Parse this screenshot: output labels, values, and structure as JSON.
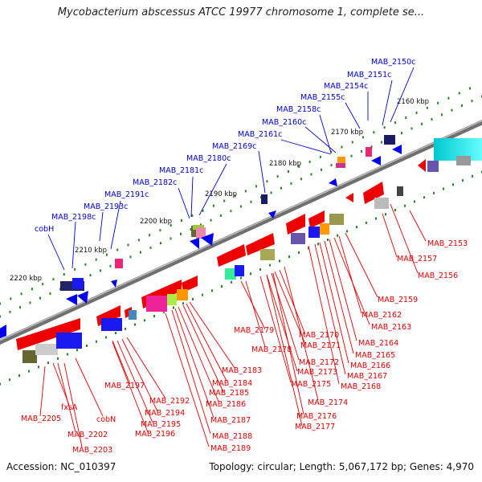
{
  "title": "Mycobacterium abscessus ATCC 19977 chromosome 1, complete se...",
  "footer": {
    "accession": "Accession: NC_010397",
    "summary": "Topology: circular; Length: 5,067,172 bp; Genes: 4,970"
  },
  "colors": {
    "forward_label": "#0000cc",
    "reverse_label": "#dd0000",
    "backbone": "#808080",
    "tick": "#228822",
    "forward_gene": "#0000ee",
    "reverse_gene": "#ee0000"
  },
  "kbp_labels": [
    "2160 kbp",
    "2170 kbp",
    "2180 kbp",
    "2190 kbp",
    "2200 kbp",
    "2210 kbp",
    "2220 kbp"
  ],
  "forward_labels": [
    "MAB_2150c",
    "MAB_2151c",
    "MAB_2154c",
    "MAB_2155c",
    "MAB_2158c",
    "MAB_2160c",
    "MAB_2161c",
    "MAB_2169c",
    "MAB_2180c",
    "MAB_2181c",
    "MAB_2182c",
    "MAB_2191c",
    "MAB_2193c",
    "MAB_2198c",
    "cobH"
  ],
  "reverse_labels": [
    "MAB_2153",
    "MAB_2157",
    "MAB_2156",
    "MAB_2159",
    "MAB_2162",
    "MAB_2163",
    "MAB_2164",
    "MAB_2165",
    "MAB_2166",
    "MAB_2167",
    "MAB_2168",
    "MAB_2179",
    "MAB_2170",
    "MAB_2171",
    "MAB_2178",
    "MAB_2172",
    "MAB_2173",
    "MAB_2175",
    "MAB_2174",
    "MAB_2176",
    "MAB_2177",
    "MAB_2183",
    "MAB_2184",
    "MAB_2185",
    "MAB_2186",
    "MAB_2187",
    "MAB_2188",
    "MAB_2189",
    "MAB_2197",
    "MAB_2192",
    "MAB_2194",
    "MAB_2195",
    "MAB_2196",
    "fxsA",
    "cobN",
    "MAB_2205",
    "MAB_2202",
    "MAB_2203"
  ]
}
